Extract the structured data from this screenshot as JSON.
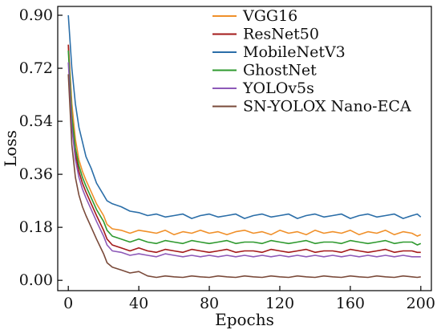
{
  "chart_data": {
    "type": "line",
    "title": "",
    "xlabel": "Epochs",
    "ylabel": "Loss",
    "xlim": [
      -6,
      206
    ],
    "ylim": [
      -0.035,
      0.93
    ],
    "xticks": [
      0,
      40,
      80,
      120,
      160,
      200
    ],
    "xtick_labels": [
      "0",
      "40",
      "80",
      "120",
      "160",
      "200"
    ],
    "yticks": [
      0.0,
      0.18,
      0.36,
      0.54,
      0.72,
      0.9
    ],
    "ytick_labels": [
      "0.00",
      "0.18",
      "0.36",
      "0.54",
      "0.72",
      "0.90"
    ],
    "grid": false,
    "legend_position": "top-right",
    "series": [
      {
        "name": "VGG16",
        "color": "#f0902a",
        "x": [
          0,
          2,
          4,
          6,
          8,
          10,
          13,
          16,
          20,
          22,
          25,
          30,
          35,
          40,
          45,
          50,
          55,
          60,
          65,
          70,
          75,
          80,
          85,
          90,
          95,
          100,
          105,
          110,
          115,
          120,
          125,
          130,
          135,
          140,
          145,
          150,
          155,
          160,
          165,
          170,
          175,
          180,
          185,
          190,
          195,
          198,
          200
        ],
        "y": [
          0.8,
          0.6,
          0.48,
          0.41,
          0.37,
          0.34,
          0.3,
          0.26,
          0.22,
          0.19,
          0.175,
          0.17,
          0.16,
          0.17,
          0.165,
          0.16,
          0.17,
          0.155,
          0.165,
          0.16,
          0.17,
          0.16,
          0.165,
          0.155,
          0.165,
          0.17,
          0.16,
          0.165,
          0.155,
          0.17,
          0.16,
          0.165,
          0.155,
          0.17,
          0.16,
          0.165,
          0.16,
          0.17,
          0.155,
          0.165,
          0.16,
          0.17,
          0.155,
          0.165,
          0.16,
          0.15,
          0.155
        ]
      },
      {
        "name": "ResNet50",
        "color": "#a31a1a",
        "x": [
          0,
          2,
          4,
          6,
          8,
          10,
          13,
          16,
          20,
          22,
          25,
          30,
          35,
          40,
          45,
          50,
          55,
          60,
          65,
          70,
          75,
          80,
          85,
          90,
          95,
          100,
          105,
          110,
          115,
          120,
          125,
          130,
          135,
          140,
          145,
          150,
          155,
          160,
          165,
          170,
          175,
          180,
          185,
          190,
          195,
          198,
          200
        ],
        "y": [
          0.8,
          0.55,
          0.43,
          0.37,
          0.33,
          0.3,
          0.26,
          0.22,
          0.17,
          0.14,
          0.12,
          0.11,
          0.1,
          0.11,
          0.1,
          0.095,
          0.105,
          0.1,
          0.095,
          0.105,
          0.1,
          0.095,
          0.1,
          0.105,
          0.095,
          0.1,
          0.1,
          0.095,
          0.105,
          0.1,
          0.095,
          0.1,
          0.105,
          0.095,
          0.1,
          0.1,
          0.095,
          0.105,
          0.1,
          0.095,
          0.1,
          0.105,
          0.095,
          0.1,
          0.1,
          0.095,
          0.095
        ]
      },
      {
        "name": "MobileNetV3",
        "color": "#2b6ea8",
        "x": [
          0,
          2,
          4,
          6,
          8,
          10,
          13,
          16,
          20,
          22,
          25,
          30,
          35,
          40,
          45,
          50,
          55,
          60,
          65,
          70,
          75,
          80,
          85,
          90,
          95,
          100,
          105,
          110,
          115,
          120,
          125,
          130,
          135,
          140,
          145,
          150,
          155,
          160,
          165,
          170,
          175,
          180,
          185,
          190,
          195,
          198,
          200
        ],
        "y": [
          0.9,
          0.72,
          0.6,
          0.52,
          0.47,
          0.42,
          0.38,
          0.33,
          0.29,
          0.27,
          0.26,
          0.25,
          0.235,
          0.23,
          0.22,
          0.225,
          0.215,
          0.22,
          0.225,
          0.21,
          0.22,
          0.225,
          0.215,
          0.22,
          0.225,
          0.21,
          0.22,
          0.225,
          0.215,
          0.22,
          0.225,
          0.21,
          0.22,
          0.225,
          0.215,
          0.22,
          0.225,
          0.21,
          0.22,
          0.225,
          0.215,
          0.22,
          0.225,
          0.21,
          0.22,
          0.225,
          0.215
        ]
      },
      {
        "name": "GhostNet",
        "color": "#2f9a2f",
        "x": [
          0,
          2,
          4,
          6,
          8,
          10,
          13,
          16,
          20,
          22,
          25,
          30,
          35,
          40,
          45,
          50,
          55,
          60,
          65,
          70,
          75,
          80,
          85,
          90,
          95,
          100,
          105,
          110,
          115,
          120,
          125,
          130,
          135,
          140,
          145,
          150,
          155,
          160,
          165,
          170,
          175,
          180,
          185,
          190,
          195,
          198,
          200
        ],
        "y": [
          0.78,
          0.56,
          0.45,
          0.39,
          0.35,
          0.32,
          0.28,
          0.24,
          0.2,
          0.17,
          0.15,
          0.14,
          0.13,
          0.14,
          0.13,
          0.125,
          0.135,
          0.13,
          0.125,
          0.135,
          0.13,
          0.125,
          0.13,
          0.135,
          0.125,
          0.13,
          0.13,
          0.125,
          0.135,
          0.13,
          0.125,
          0.13,
          0.135,
          0.125,
          0.13,
          0.13,
          0.125,
          0.135,
          0.13,
          0.125,
          0.13,
          0.135,
          0.125,
          0.13,
          0.13,
          0.12,
          0.125
        ]
      },
      {
        "name": "YOLOv5s",
        "color": "#8e5ab8",
        "x": [
          0,
          2,
          4,
          6,
          8,
          10,
          13,
          16,
          20,
          22,
          25,
          30,
          35,
          40,
          45,
          50,
          55,
          60,
          65,
          70,
          75,
          80,
          85,
          90,
          95,
          100,
          105,
          110,
          115,
          120,
          125,
          130,
          135,
          140,
          145,
          150,
          155,
          160,
          165,
          170,
          175,
          180,
          185,
          190,
          195,
          198,
          200
        ],
        "y": [
          0.74,
          0.52,
          0.41,
          0.35,
          0.31,
          0.28,
          0.24,
          0.2,
          0.15,
          0.12,
          0.1,
          0.095,
          0.085,
          0.09,
          0.085,
          0.08,
          0.09,
          0.085,
          0.08,
          0.085,
          0.08,
          0.085,
          0.08,
          0.085,
          0.08,
          0.085,
          0.08,
          0.085,
          0.08,
          0.085,
          0.08,
          0.085,
          0.08,
          0.085,
          0.08,
          0.085,
          0.08,
          0.085,
          0.08,
          0.085,
          0.08,
          0.085,
          0.08,
          0.085,
          0.08,
          0.08,
          0.08
        ]
      },
      {
        "name": "SN-YOLOX Nano-ECA",
        "color": "#7a4a3a",
        "x": [
          0,
          2,
          4,
          6,
          8,
          10,
          13,
          16,
          20,
          22,
          25,
          30,
          35,
          40,
          45,
          50,
          55,
          60,
          65,
          70,
          75,
          80,
          85,
          90,
          95,
          100,
          105,
          110,
          115,
          120,
          125,
          130,
          135,
          140,
          145,
          150,
          155,
          160,
          165,
          170,
          175,
          180,
          185,
          190,
          195,
          198,
          200
        ],
        "y": [
          0.7,
          0.46,
          0.35,
          0.29,
          0.25,
          0.22,
          0.18,
          0.14,
          0.09,
          0.06,
          0.045,
          0.035,
          0.025,
          0.03,
          0.015,
          0.01,
          0.015,
          0.012,
          0.01,
          0.015,
          0.012,
          0.01,
          0.015,
          0.012,
          0.01,
          0.015,
          0.012,
          0.01,
          0.015,
          0.012,
          0.01,
          0.015,
          0.012,
          0.01,
          0.015,
          0.012,
          0.01,
          0.015,
          0.012,
          0.01,
          0.015,
          0.012,
          0.01,
          0.015,
          0.012,
          0.01,
          0.012
        ]
      }
    ]
  }
}
